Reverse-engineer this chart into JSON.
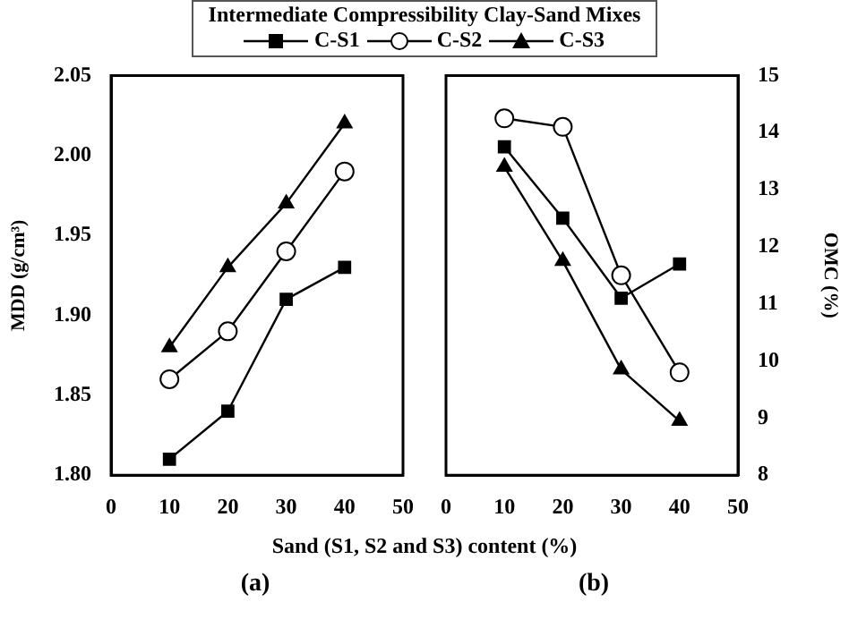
{
  "chart_data": [
    {
      "type": "line",
      "legend_title": "Intermediate Compressibility Clay-Sand Mixes",
      "legend": "top",
      "xlabel": "Sand (S1, S2 and S3) content (%)",
      "ylabel": "MDD (g/cm³)",
      "annotations": [
        "(a)"
      ],
      "x": [
        10,
        20,
        30,
        40
      ],
      "xlim": [
        0,
        50
      ],
      "xticks": [
        0,
        10,
        20,
        30,
        40,
        50
      ],
      "ylim": [
        1.8,
        2.05
      ],
      "yticks": [
        {
          "value": 1.8,
          "label": "1.80"
        },
        {
          "value": 1.85,
          "label": "1.85"
        },
        {
          "value": 1.9,
          "label": "1.90"
        },
        {
          "value": 1.95,
          "label": "1.95"
        },
        {
          "value": 2.0,
          "label": "2.00"
        },
        {
          "value": 2.05,
          "label": "2.05"
        }
      ],
      "grid": false,
      "line_style": "solid",
      "series": [
        {
          "name": "C-S1",
          "color": "#000000",
          "marker": "square",
          "values": [
            1.81,
            1.84,
            1.91,
            1.93
          ]
        },
        {
          "name": "C-S2",
          "color": "#000000",
          "marker": "circle",
          "values": [
            1.86,
            1.89,
            1.94,
            1.99
          ]
        },
        {
          "name": "C-S3",
          "color": "#000000",
          "marker": "triangle",
          "values": [
            1.88,
            1.93,
            1.97,
            2.02
          ]
        }
      ]
    },
    {
      "type": "line",
      "ylabel": "OMC (%)",
      "annotations": [
        "(b)"
      ],
      "x": [
        10,
        20,
        30,
        40
      ],
      "xlim": [
        0,
        50
      ],
      "xticks": [
        0,
        10,
        20,
        30,
        40,
        50
      ],
      "ylim": [
        8,
        15
      ],
      "yticks": [
        8,
        9,
        10,
        11,
        12,
        13,
        14,
        15
      ],
      "grid": false,
      "line_style": "solid",
      "series": [
        {
          "color": "#000000",
          "marker": "square",
          "values": [
            13.75,
            12.5,
            11.1,
            11.7
          ]
        },
        {
          "color": "#000000",
          "marker": "circle",
          "values": [
            14.25,
            14.1,
            11.5,
            9.8
          ]
        },
        {
          "color": "#000000",
          "marker": "triangle",
          "values": [
            13.4,
            11.75,
            9.85,
            8.95
          ]
        }
      ]
    }
  ]
}
